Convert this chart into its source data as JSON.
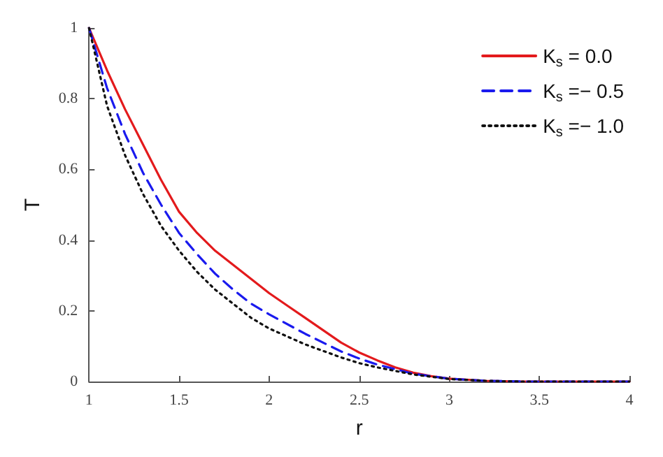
{
  "chart_data": {
    "type": "line",
    "xlabel": "r",
    "ylabel": "T",
    "xlim": [
      1,
      4
    ],
    "ylim": [
      0,
      1
    ],
    "xticks": [
      1,
      1.5,
      2,
      2.5,
      3,
      3.5,
      4
    ],
    "yticks": [
      0,
      0.2,
      0.4,
      0.6,
      0.8,
      1
    ],
    "grid": false,
    "legend": "top right",
    "marker": "none",
    "series": [
      {
        "name": "K$_{s}$ = 0.0",
        "color": "#e31a1c",
        "line_style": "solid",
        "x": [
          1,
          1.1,
          1.2,
          1.3,
          1.4,
          1.5,
          1.6,
          1.7,
          1.8,
          1.9,
          2,
          2.1,
          2.2,
          2.3,
          2.4,
          2.5,
          2.6,
          2.7,
          2.8,
          2.9,
          3,
          3.2,
          3.4,
          4
        ],
        "values": [
          1,
          0.88,
          0.77,
          0.67,
          0.57,
          0.48,
          0.42,
          0.37,
          0.33,
          0.29,
          0.25,
          0.215,
          0.18,
          0.145,
          0.11,
          0.082,
          0.06,
          0.04,
          0.025,
          0.015,
          0.008,
          0.002,
          0,
          0
        ]
      },
      {
        "name": "K$_{s}$ =− 0.5",
        "color": "#1a1aee",
        "line_style": "dashed",
        "x": [
          1,
          1.1,
          1.2,
          1.3,
          1.4,
          1.5,
          1.6,
          1.7,
          1.8,
          1.9,
          2,
          2.2,
          2.4,
          2.5,
          2.6,
          2.8,
          3,
          3.2,
          3.4,
          4
        ],
        "values": [
          1,
          0.83,
          0.7,
          0.59,
          0.5,
          0.42,
          0.36,
          0.305,
          0.26,
          0.22,
          0.19,
          0.135,
          0.085,
          0.065,
          0.048,
          0.022,
          0.008,
          0.002,
          0,
          0
        ]
      },
      {
        "name": "K$_{s}$ =− 1.0",
        "color": "#111111",
        "line_style": "dotted",
        "x": [
          1,
          1.1,
          1.2,
          1.3,
          1.4,
          1.5,
          1.6,
          1.7,
          1.8,
          1.9,
          2,
          2.2,
          2.4,
          2.5,
          2.6,
          2.8,
          3,
          3.2,
          3.4,
          4
        ],
        "values": [
          1,
          0.78,
          0.64,
          0.53,
          0.44,
          0.37,
          0.31,
          0.26,
          0.22,
          0.18,
          0.15,
          0.105,
          0.068,
          0.052,
          0.04,
          0.02,
          0.007,
          0.002,
          0,
          0
        ]
      }
    ]
  }
}
